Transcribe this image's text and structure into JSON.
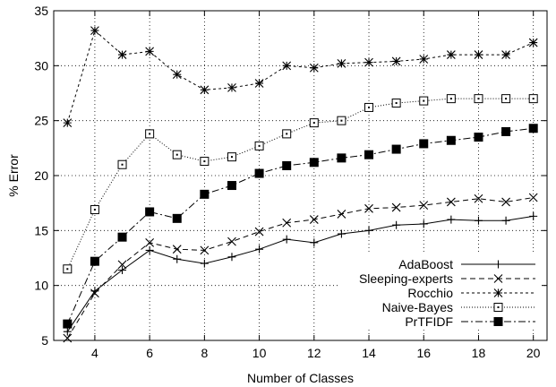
{
  "chart_data": {
    "type": "line",
    "title": "",
    "xlabel": "Number of Classes",
    "ylabel": "% Error",
    "xlim": [
      2.5,
      20.5
    ],
    "ylim": [
      5,
      35
    ],
    "xticks": [
      4,
      6,
      8,
      10,
      12,
      14,
      16,
      18,
      20
    ],
    "yticks": [
      5,
      10,
      15,
      20,
      25,
      30,
      35
    ],
    "grid": true,
    "legend_position": "bottom-right",
    "x": [
      3,
      4,
      5,
      6,
      7,
      8,
      9,
      10,
      11,
      12,
      13,
      14,
      15,
      16,
      17,
      18,
      19,
      20
    ],
    "series": [
      {
        "name": "AdaBoost",
        "marker": "plus",
        "dash": "solid",
        "values": [
          5.8,
          9.5,
          11.4,
          13.2,
          12.4,
          12.0,
          12.6,
          13.3,
          14.2,
          13.9,
          14.7,
          15.0,
          15.5,
          15.6,
          16.0,
          15.9,
          15.9,
          16.3
        ]
      },
      {
        "name": "Sleeping-experts",
        "marker": "x",
        "dash": "dashed",
        "values": [
          5.2,
          9.3,
          11.9,
          13.9,
          13.3,
          13.2,
          14.0,
          14.9,
          15.7,
          16.0,
          16.5,
          17.0,
          17.1,
          17.3,
          17.6,
          17.9,
          17.6,
          18.0
        ]
      },
      {
        "name": "Rocchio",
        "marker": "star",
        "dash": "dotted",
        "values": [
          24.8,
          33.2,
          31.0,
          31.3,
          29.2,
          27.8,
          28.0,
          28.4,
          30.0,
          29.8,
          30.2,
          30.3,
          30.4,
          30.6,
          31.0,
          31.0,
          31.0,
          32.1
        ]
      },
      {
        "name": "Naive-Bayes",
        "marker": "open-square",
        "dash": "fine-dotted",
        "values": [
          11.5,
          16.9,
          21.0,
          23.8,
          21.9,
          21.3,
          21.7,
          22.7,
          23.8,
          24.8,
          25.0,
          26.2,
          26.6,
          26.8,
          27.0,
          27.0,
          27.0,
          27.0
        ]
      },
      {
        "name": "PrTFIDF",
        "marker": "filled-square",
        "dash": "dash-dot",
        "values": [
          6.5,
          12.2,
          14.4,
          16.7,
          16.1,
          18.3,
          19.1,
          20.2,
          20.9,
          21.2,
          21.6,
          21.9,
          22.4,
          22.9,
          23.2,
          23.5,
          24.0,
          24.3
        ]
      }
    ]
  }
}
